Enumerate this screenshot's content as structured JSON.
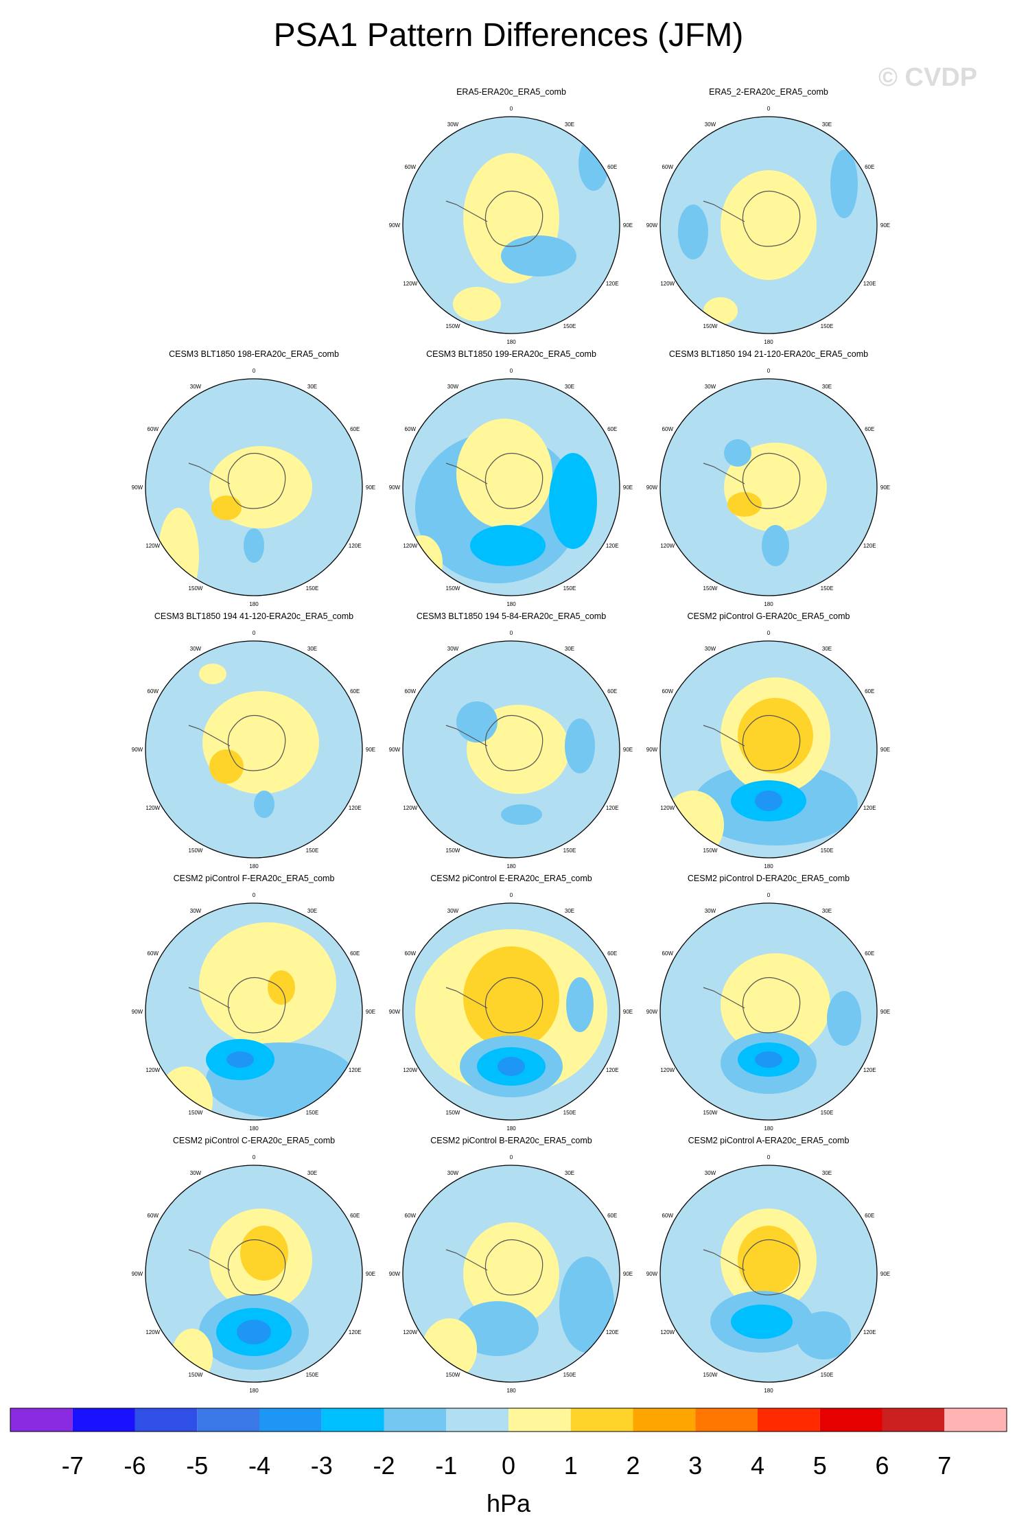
{
  "title": "PSA1 Pattern Differences (JFM)",
  "watermark": "© CVDP",
  "chart_data": {
    "type": "polar-contour-map-panels",
    "projection": "south polar stereographic",
    "longitude_labels": [
      "0",
      "30E",
      "60E",
      "90E",
      "120E",
      "150E",
      "180",
      "150W",
      "120W",
      "90W",
      "60W",
      "30W"
    ],
    "panels": [
      {
        "title": "ERA5-ERA20c_ERA5_comb",
        "row": 0,
        "col": 1
      },
      {
        "title": "ERA5_2-ERA20c_ERA5_comb",
        "row": 0,
        "col": 2
      },
      {
        "title": "CESM3 BLT1850 198-ERA20c_ERA5_comb",
        "row": 1,
        "col": 0
      },
      {
        "title": "CESM3 BLT1850 199-ERA20c_ERA5_comb",
        "row": 1,
        "col": 1
      },
      {
        "title": "CESM3 BLT1850 194 21-120-ERA20c_ERA5_comb",
        "row": 1,
        "col": 2
      },
      {
        "title": "CESM3 BLT1850 194 41-120-ERA20c_ERA5_comb",
        "row": 2,
        "col": 0
      },
      {
        "title": "CESM3 BLT1850 194 5-84-ERA20c_ERA5_comb",
        "row": 2,
        "col": 1
      },
      {
        "title": "CESM2 piControl G-ERA20c_ERA5_comb",
        "row": 2,
        "col": 2
      },
      {
        "title": "CESM2 piControl F-ERA20c_ERA5_comb",
        "row": 3,
        "col": 0
      },
      {
        "title": "CESM2 piControl E-ERA20c_ERA5_comb",
        "row": 3,
        "col": 1
      },
      {
        "title": "CESM2 piControl D-ERA20c_ERA5_comb",
        "row": 3,
        "col": 2
      },
      {
        "title": "CESM2 piControl C-ERA20c_ERA5_comb",
        "row": 4,
        "col": 0
      },
      {
        "title": "CESM2 piControl B-ERA20c_ERA5_comb",
        "row": 4,
        "col": 1
      },
      {
        "title": "CESM2 piControl A-ERA20c_ERA5_comb",
        "row": 4,
        "col": 2
      }
    ],
    "colorbar": {
      "levels": [
        -7,
        -6,
        -5,
        -4,
        -3,
        -2,
        -1,
        0,
        1,
        2,
        3,
        4,
        5,
        6,
        7
      ],
      "tick_labels": [
        "-7",
        "-6",
        "-5",
        "-4",
        "-3",
        "-2",
        "-1",
        "0",
        "1",
        "2",
        "3",
        "4",
        "5",
        "6",
        "7"
      ],
      "colors": [
        "#8a2be2",
        "#1a12ff",
        "#2f4fe6",
        "#3a78e8",
        "#1e96f5",
        "#00bfff",
        "#74c7f0",
        "#b2def2",
        "#fff799",
        "#ffd42a",
        "#ffa500",
        "#ff7700",
        "#ff2a00",
        "#e60000",
        "#cc1f1f",
        "#ffb3b3"
      ],
      "units": "hPa"
    }
  }
}
